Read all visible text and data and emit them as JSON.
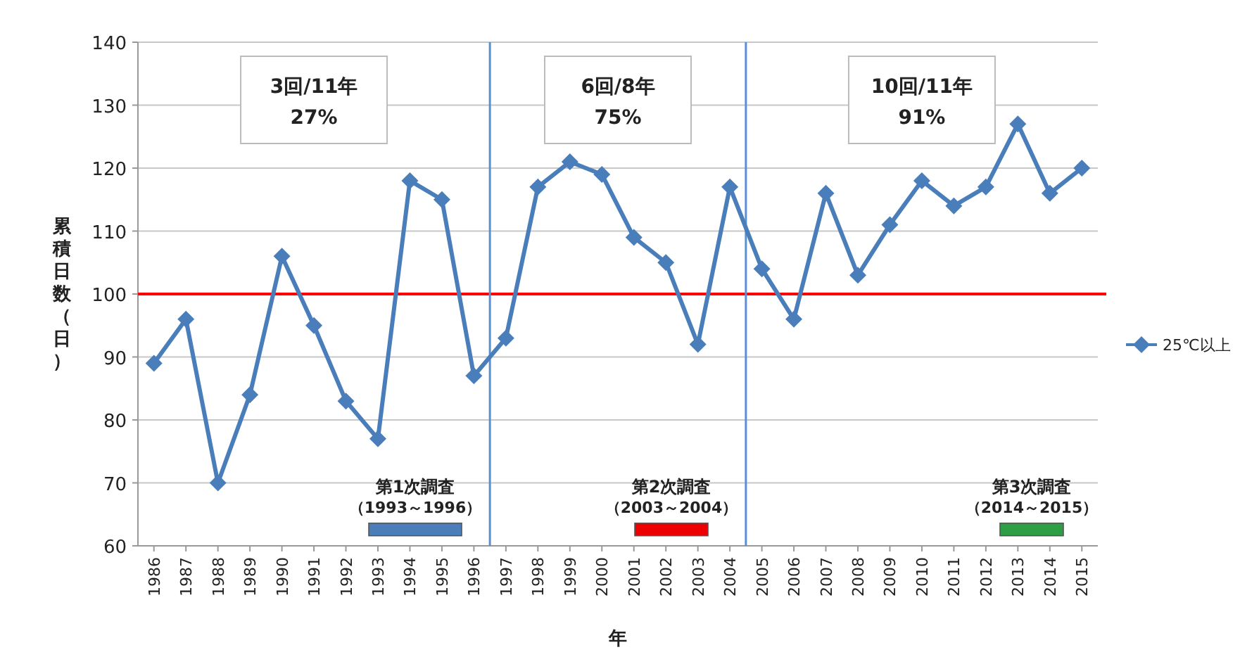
{
  "chart_data": {
    "type": "line",
    "xlabel": "年",
    "ylabel": "累積日数（日）",
    "x": [
      1986,
      1987,
      1988,
      1989,
      1990,
      1991,
      1992,
      1993,
      1994,
      1995,
      1996,
      1997,
      1998,
      1999,
      2000,
      2001,
      2002,
      2003,
      2004,
      2005,
      2006,
      2007,
      2008,
      2009,
      2010,
      2011,
      2012,
      2013,
      2014,
      2015
    ],
    "series": [
      {
        "name": "25℃以上",
        "color": "#4a7ebb",
        "values": [
          89,
          96,
          70,
          84,
          106,
          95,
          83,
          77,
          118,
          115,
          87,
          93,
          117,
          121,
          119,
          109,
          105,
          92,
          117,
          104,
          96,
          116,
          103,
          111,
          118,
          114,
          117,
          127,
          116,
          120
        ]
      }
    ],
    "xlim": [
      1985.5,
      2015.5
    ],
    "xticks": [
      1986,
      1987,
      1988,
      1989,
      1990,
      1991,
      1992,
      1993,
      1994,
      1995,
      1996,
      1997,
      1998,
      1999,
      2000,
      2001,
      2002,
      2003,
      2004,
      2005,
      2006,
      2007,
      2008,
      2009,
      2010,
      2011,
      2012,
      2013,
      2014,
      2015
    ],
    "ylim": [
      60,
      140
    ],
    "yticks": [
      60,
      70,
      80,
      90,
      100,
      110,
      120,
      130,
      140
    ],
    "grid": "y",
    "legend": "right",
    "marker": "diamond",
    "line_style": "solid",
    "ref_lines": [
      {
        "axis": "y",
        "value": 100,
        "color": "#ff0000"
      },
      {
        "axis": "x",
        "value": 1996.5,
        "color": "#5b8fd0"
      },
      {
        "axis": "x",
        "value": 2004.5,
        "color": "#5b8fd0"
      }
    ],
    "annotations": [
      "3回/11年 27%",
      "6回/8年 75%",
      "10回/11年 91%",
      "第1次調査（1993～1996）",
      "第2次調査（2003～2004）",
      "第3次調査（2014～2015）"
    ]
  }
}
